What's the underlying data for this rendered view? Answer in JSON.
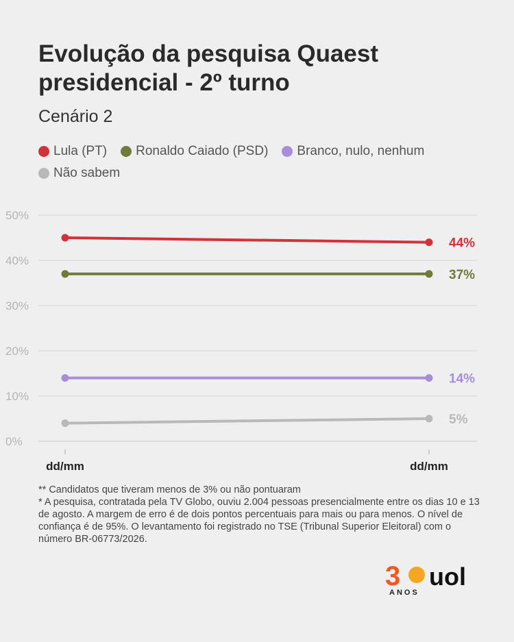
{
  "title": "Evolução da pesquisa Quaest presidencial - 2º turno",
  "subtitle": "Cenário 2",
  "chart_data": {
    "type": "line",
    "x": [
      "dd/mm",
      "dd/mm"
    ],
    "ylim": [
      0,
      50
    ],
    "yticks": [
      "0%",
      "10%",
      "20%",
      "30%",
      "40%",
      "50%"
    ],
    "grid": true,
    "legend_position": "top",
    "series": [
      {
        "name": "Lula (PT)",
        "color": "#d0343a",
        "values": [
          45,
          44
        ],
        "end_label": "44%"
      },
      {
        "name": "Ronaldo Caiado (PSD)",
        "color": "#6e7b3b",
        "values": [
          37,
          37
        ],
        "end_label": "37%"
      },
      {
        "name": "Branco, nulo, nenhum",
        "color": "#a88ed8",
        "values": [
          14,
          14
        ],
        "end_label": "14%"
      },
      {
        "name": "Não sabem",
        "color": "#b9b9b9",
        "values": [
          4,
          5
        ],
        "end_label": "5%"
      }
    ]
  },
  "notes": [
    "** Candidatos que tiveram menos de 3% ou não pontuaram",
    "* A pesquisa, contratada pela TV Globo, ouviu 2.004 pessoas presencialmente entre os dias 10 e 13 de agosto. A margem de erro é de dois pontos percentuais para mais ou para menos. O nível de confiança é de 95%. O levantamento foi registrado no TSE (Tribunal Superior Eleitoral) com o número BR-06773/2026."
  ],
  "logo": {
    "number": "30",
    "anos": "ANOS",
    "brand": "uol",
    "colors": {
      "number": "#f05a22",
      "sun": "#f5a623",
      "brand": "#111111"
    }
  }
}
